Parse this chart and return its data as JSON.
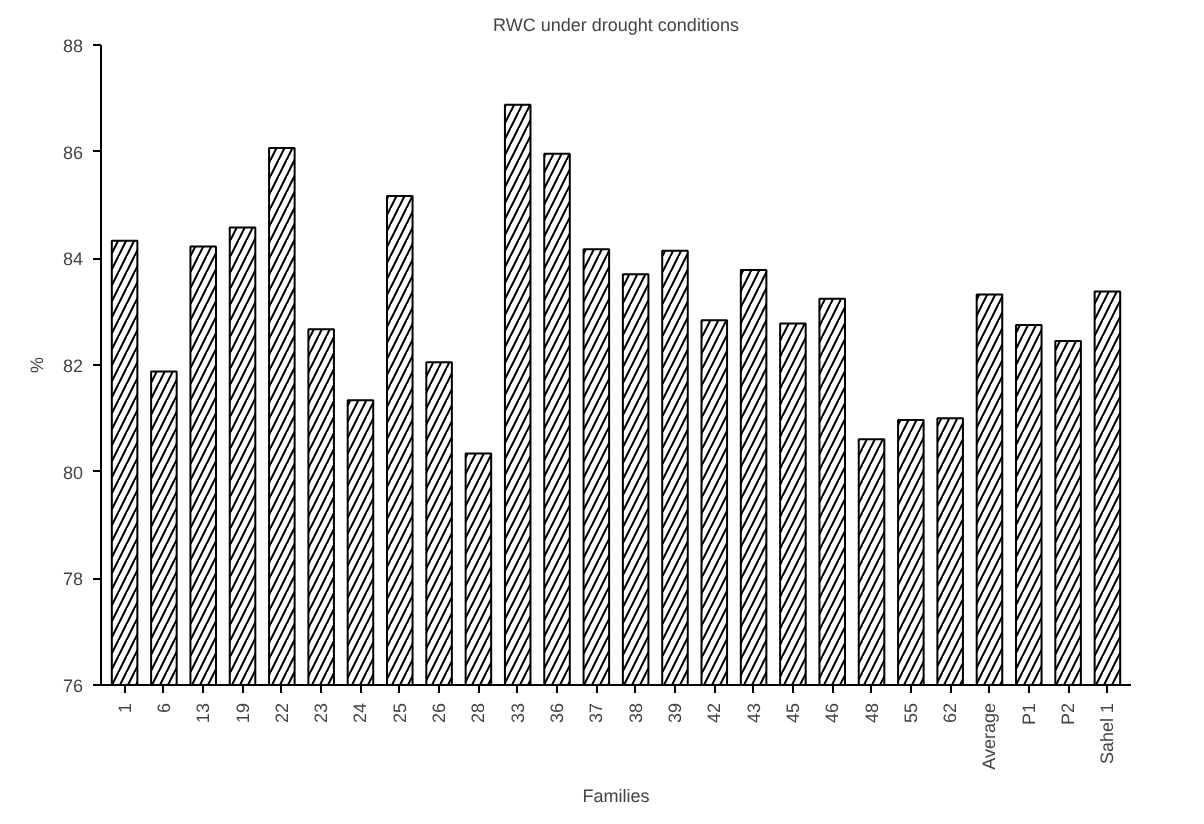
{
  "chart_data": {
    "type": "bar",
    "title": "RWC under drought conditions",
    "xlabel": "Families",
    "ylabel": "%",
    "categories": [
      "1",
      "6",
      "13",
      "19",
      "22",
      "23",
      "24",
      "25",
      "26",
      "28",
      "33",
      "36",
      "37",
      "38",
      "39",
      "42",
      "43",
      "45",
      "46",
      "48",
      "55",
      "62",
      "Average",
      "P1",
      "P2",
      "Sahel 1"
    ],
    "series": [
      {
        "color": "#ffffff",
        "values": [
          84.33,
          81.88,
          84.22,
          84.58,
          86.07,
          82.67,
          81.34,
          85.17,
          82.05,
          80.34,
          86.88,
          85.96,
          84.17,
          83.7,
          84.14,
          82.84,
          83.78,
          82.78,
          83.24,
          80.61,
          80.97,
          81.0,
          83.32,
          82.75,
          82.45,
          83.38
        ]
      }
    ],
    "ylim": [
      76,
      88
    ],
    "yticks": [
      76,
      78,
      80,
      82,
      84,
      86,
      88
    ],
    "grid": false
  }
}
